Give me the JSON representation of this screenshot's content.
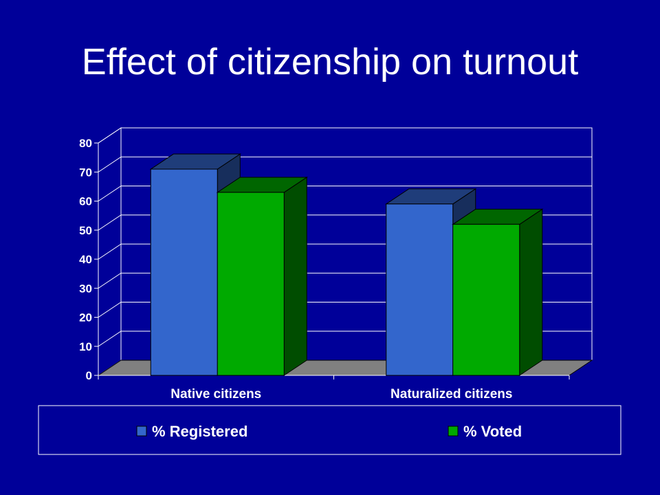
{
  "title": "Effect of citizenship on turnout",
  "colors": {
    "background": "#000099",
    "registered": "#3366cc",
    "voted": "#00aa00",
    "axis": "#ffffff"
  },
  "chart_data": {
    "type": "bar",
    "title": "Effect of citizenship on turnout",
    "categories": [
      "Native citizens",
      "Naturalized citizens"
    ],
    "series": [
      {
        "name": "% Registered",
        "values": [
          71,
          59
        ]
      },
      {
        "name": "% Voted",
        "values": [
          63,
          52
        ]
      }
    ],
    "ylim": [
      0,
      80
    ],
    "yticks": [
      "0",
      "10",
      "20",
      "30",
      "40",
      "50",
      "60",
      "70",
      "80"
    ],
    "grid": true,
    "legend_position": "bottom",
    "style": "3d"
  }
}
